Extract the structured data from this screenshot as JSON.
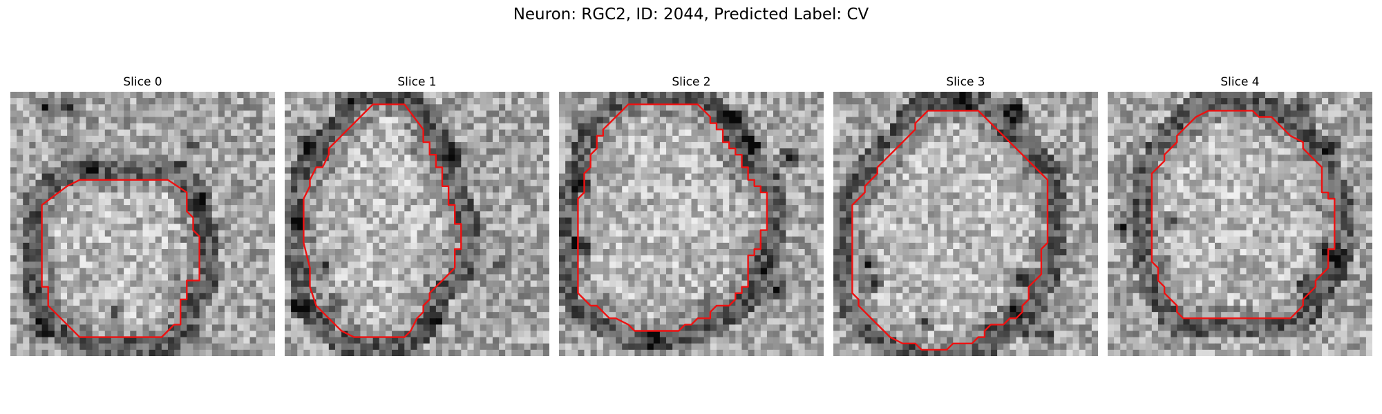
{
  "figure": {
    "title": "Neuron: RGC2, ID: 2044, Predicted Label: CV"
  },
  "panels": [
    {
      "label": "Slice 0",
      "seed": 11,
      "contour": [
        [
          23,
          14
        ],
        [
          11,
          14
        ],
        [
          9,
          15
        ],
        [
          5,
          18
        ],
        [
          5,
          31
        ],
        [
          6,
          31
        ],
        [
          6,
          34
        ],
        [
          8,
          36
        ],
        [
          11,
          39
        ],
        [
          24,
          39
        ],
        [
          26,
          37
        ],
        [
          27,
          37
        ],
        [
          27,
          33
        ],
        [
          28,
          33
        ],
        [
          28,
          30
        ],
        [
          30,
          30
        ],
        [
          30,
          23
        ],
        [
          29,
          22
        ],
        [
          29,
          20
        ],
        [
          28,
          19
        ],
        [
          28,
          16
        ],
        [
          25,
          14
        ]
      ],
      "dark_spots": [
        [
          5,
          2
        ],
        [
          9,
          2
        ],
        [
          12,
          12
        ],
        [
          28,
          8
        ],
        [
          30,
          17
        ],
        [
          4,
          36
        ],
        [
          16,
          35
        ],
        [
          5,
          38
        ]
      ]
    },
    {
      "label": "Slice 1",
      "seed": 23,
      "contour": [
        [
          14,
          2
        ],
        [
          19,
          2
        ],
        [
          22,
          6
        ],
        [
          22,
          8
        ],
        [
          23,
          8
        ],
        [
          23,
          10
        ],
        [
          24,
          10
        ],
        [
          24,
          12
        ],
        [
          25,
          12
        ],
        [
          25,
          15
        ],
        [
          26,
          15
        ],
        [
          26,
          18
        ],
        [
          27,
          18
        ],
        [
          27,
          21
        ],
        [
          28,
          21
        ],
        [
          28,
          25
        ],
        [
          27,
          25
        ],
        [
          27,
          28
        ],
        [
          25,
          30
        ],
        [
          24,
          31
        ],
        [
          23,
          32
        ],
        [
          23,
          33
        ],
        [
          22,
          34
        ],
        [
          22,
          35
        ],
        [
          21,
          36
        ],
        [
          20,
          38
        ],
        [
          19,
          39
        ],
        [
          14,
          39
        ],
        [
          11,
          39
        ],
        [
          9,
          38
        ],
        [
          7,
          36
        ],
        [
          6,
          35
        ],
        [
          5,
          34
        ],
        [
          4,
          31
        ],
        [
          4,
          28
        ],
        [
          3,
          24
        ],
        [
          3,
          17
        ],
        [
          4,
          15
        ],
        [
          4,
          14
        ],
        [
          5,
          12
        ],
        [
          6,
          12
        ],
        [
          7,
          10
        ],
        [
          7,
          9
        ],
        [
          8,
          8
        ],
        [
          9,
          7
        ],
        [
          10,
          6
        ],
        [
          11,
          5
        ],
        [
          12,
          4
        ],
        [
          13,
          3
        ]
      ],
      "dark_spots": [
        [
          9,
          1
        ],
        [
          3,
          8
        ],
        [
          2,
          20
        ],
        [
          6,
          27
        ],
        [
          2,
          34
        ],
        [
          8,
          33
        ],
        [
          26,
          9
        ],
        [
          34,
          27
        ],
        [
          23,
          36
        ]
      ]
    },
    {
      "label": "Slice 2",
      "seed": 37,
      "contour": [
        [
          11,
          2
        ],
        [
          22,
          2
        ],
        [
          24,
          4
        ],
        [
          24,
          5
        ],
        [
          25,
          5
        ],
        [
          25,
          6
        ],
        [
          26,
          6
        ],
        [
          26,
          8
        ],
        [
          27,
          8
        ],
        [
          27,
          9
        ],
        [
          28,
          9
        ],
        [
          28,
          10
        ],
        [
          29,
          10
        ],
        [
          29,
          12
        ],
        [
          30,
          12
        ],
        [
          30,
          14
        ],
        [
          31,
          14
        ],
        [
          31,
          15
        ],
        [
          32,
          15
        ],
        [
          32,
          16
        ],
        [
          33,
          16
        ],
        [
          33,
          22
        ],
        [
          32,
          22
        ],
        [
          32,
          25
        ],
        [
          31,
          25
        ],
        [
          31,
          26
        ],
        [
          30,
          26
        ],
        [
          30,
          31
        ],
        [
          29,
          31
        ],
        [
          29,
          32
        ],
        [
          28,
          32
        ],
        [
          28,
          33
        ],
        [
          27,
          34
        ],
        [
          25,
          34
        ],
        [
          24,
          35
        ],
        [
          24,
          36
        ],
        [
          22,
          36
        ],
        [
          21,
          37
        ],
        [
          20,
          37
        ],
        [
          19,
          38
        ],
        [
          12,
          38
        ],
        [
          11,
          37
        ],
        [
          9,
          36
        ],
        [
          8,
          36
        ],
        [
          7,
          35
        ],
        [
          6,
          34
        ],
        [
          5,
          34
        ],
        [
          4,
          33
        ],
        [
          3,
          32
        ],
        [
          3,
          30
        ],
        [
          3,
          26
        ],
        [
          3,
          17
        ],
        [
          4,
          16
        ],
        [
          4,
          13
        ],
        [
          5,
          12
        ],
        [
          5,
          10
        ],
        [
          6,
          9
        ],
        [
          6,
          7
        ],
        [
          7,
          7
        ],
        [
          7,
          6
        ],
        [
          8,
          5
        ],
        [
          9,
          4
        ],
        [
          10,
          3
        ]
      ],
      "dark_spots": [
        [
          26,
          3
        ],
        [
          28,
          4
        ],
        [
          30,
          8
        ],
        [
          36,
          10
        ],
        [
          3,
          14
        ],
        [
          3,
          24
        ],
        [
          33,
          28
        ],
        [
          34,
          31
        ],
        [
          15,
          39
        ]
      ]
    },
    {
      "label": "Slice 3",
      "seed": 53,
      "contour": [
        [
          15,
          3
        ],
        [
          23,
          3
        ],
        [
          24,
          4
        ],
        [
          25,
          5
        ],
        [
          26,
          6
        ],
        [
          27,
          7
        ],
        [
          28,
          8
        ],
        [
          29,
          9
        ],
        [
          30,
          10
        ],
        [
          31,
          11
        ],
        [
          32,
          12
        ],
        [
          33,
          13
        ],
        [
          34,
          14
        ],
        [
          34,
          24
        ],
        [
          33,
          25
        ],
        [
          33,
          29
        ],
        [
          31,
          31
        ],
        [
          31,
          33
        ],
        [
          30,
          34
        ],
        [
          30,
          35
        ],
        [
          29,
          36
        ],
        [
          28,
          36
        ],
        [
          27,
          37
        ],
        [
          25,
          37
        ],
        [
          24,
          38
        ],
        [
          24,
          39
        ],
        [
          23,
          39
        ],
        [
          22,
          40
        ],
        [
          19,
          40
        ],
        [
          18,
          41
        ],
        [
          14,
          41
        ],
        [
          13,
          40
        ],
        [
          11,
          40
        ],
        [
          9,
          39
        ],
        [
          8,
          38
        ],
        [
          7,
          37
        ],
        [
          6,
          36
        ],
        [
          5,
          35
        ],
        [
          4,
          34
        ],
        [
          4,
          33
        ],
        [
          3,
          32
        ],
        [
          3,
          18
        ],
        [
          5,
          16
        ],
        [
          5,
          15
        ],
        [
          6,
          14
        ],
        [
          7,
          13
        ],
        [
          7,
          12
        ],
        [
          8,
          11
        ],
        [
          9,
          10
        ],
        [
          10,
          9
        ],
        [
          11,
          8
        ],
        [
          12,
          7
        ],
        [
          13,
          6
        ],
        [
          13,
          5
        ],
        [
          14,
          4
        ]
      ],
      "dark_spots": [
        [
          20,
          1
        ],
        [
          28,
          2
        ],
        [
          29,
          3
        ],
        [
          5,
          27
        ],
        [
          6,
          30
        ],
        [
          30,
          29
        ],
        [
          28,
          34
        ],
        [
          14,
          36
        ],
        [
          33,
          38
        ]
      ]
    },
    {
      "label": "Slice 4",
      "seed": 71,
      "contour": [
        [
          16,
          3
        ],
        [
          23,
          3
        ],
        [
          24,
          4
        ],
        [
          26,
          4
        ],
        [
          27,
          5
        ],
        [
          28,
          6
        ],
        [
          29,
          7
        ],
        [
          31,
          8
        ],
        [
          31,
          9
        ],
        [
          32,
          10
        ],
        [
          33,
          11
        ],
        [
          34,
          12
        ],
        [
          34,
          16
        ],
        [
          35,
          16
        ],
        [
          35,
          17
        ],
        [
          36,
          17
        ],
        [
          36,
          25
        ],
        [
          35,
          25
        ],
        [
          35,
          28
        ],
        [
          34,
          29
        ],
        [
          33,
          30
        ],
        [
          33,
          31
        ],
        [
          32,
          32
        ],
        [
          31,
          33
        ],
        [
          31,
          34
        ],
        [
          30,
          35
        ],
        [
          29,
          36
        ],
        [
          27,
          36
        ],
        [
          25,
          36
        ],
        [
          16,
          36
        ],
        [
          12,
          36
        ],
        [
          11,
          35
        ],
        [
          11,
          34
        ],
        [
          10,
          33
        ],
        [
          9,
          32
        ],
        [
          9,
          31
        ],
        [
          8,
          30
        ],
        [
          8,
          28
        ],
        [
          7,
          27
        ],
        [
          7,
          13
        ],
        [
          8,
          12
        ],
        [
          9,
          11
        ],
        [
          9,
          10
        ],
        [
          10,
          9
        ],
        [
          11,
          8
        ],
        [
          11,
          7
        ],
        [
          12,
          6
        ],
        [
          13,
          5
        ],
        [
          14,
          4
        ]
      ],
      "dark_spots": [
        [
          30,
          2
        ],
        [
          35,
          8
        ],
        [
          34,
          25
        ],
        [
          36,
          26
        ],
        [
          10,
          20
        ],
        [
          2,
          21
        ],
        [
          31,
          30
        ]
      ]
    }
  ],
  "colors": {
    "contour": "#ee1111",
    "background": "#ffffff"
  }
}
